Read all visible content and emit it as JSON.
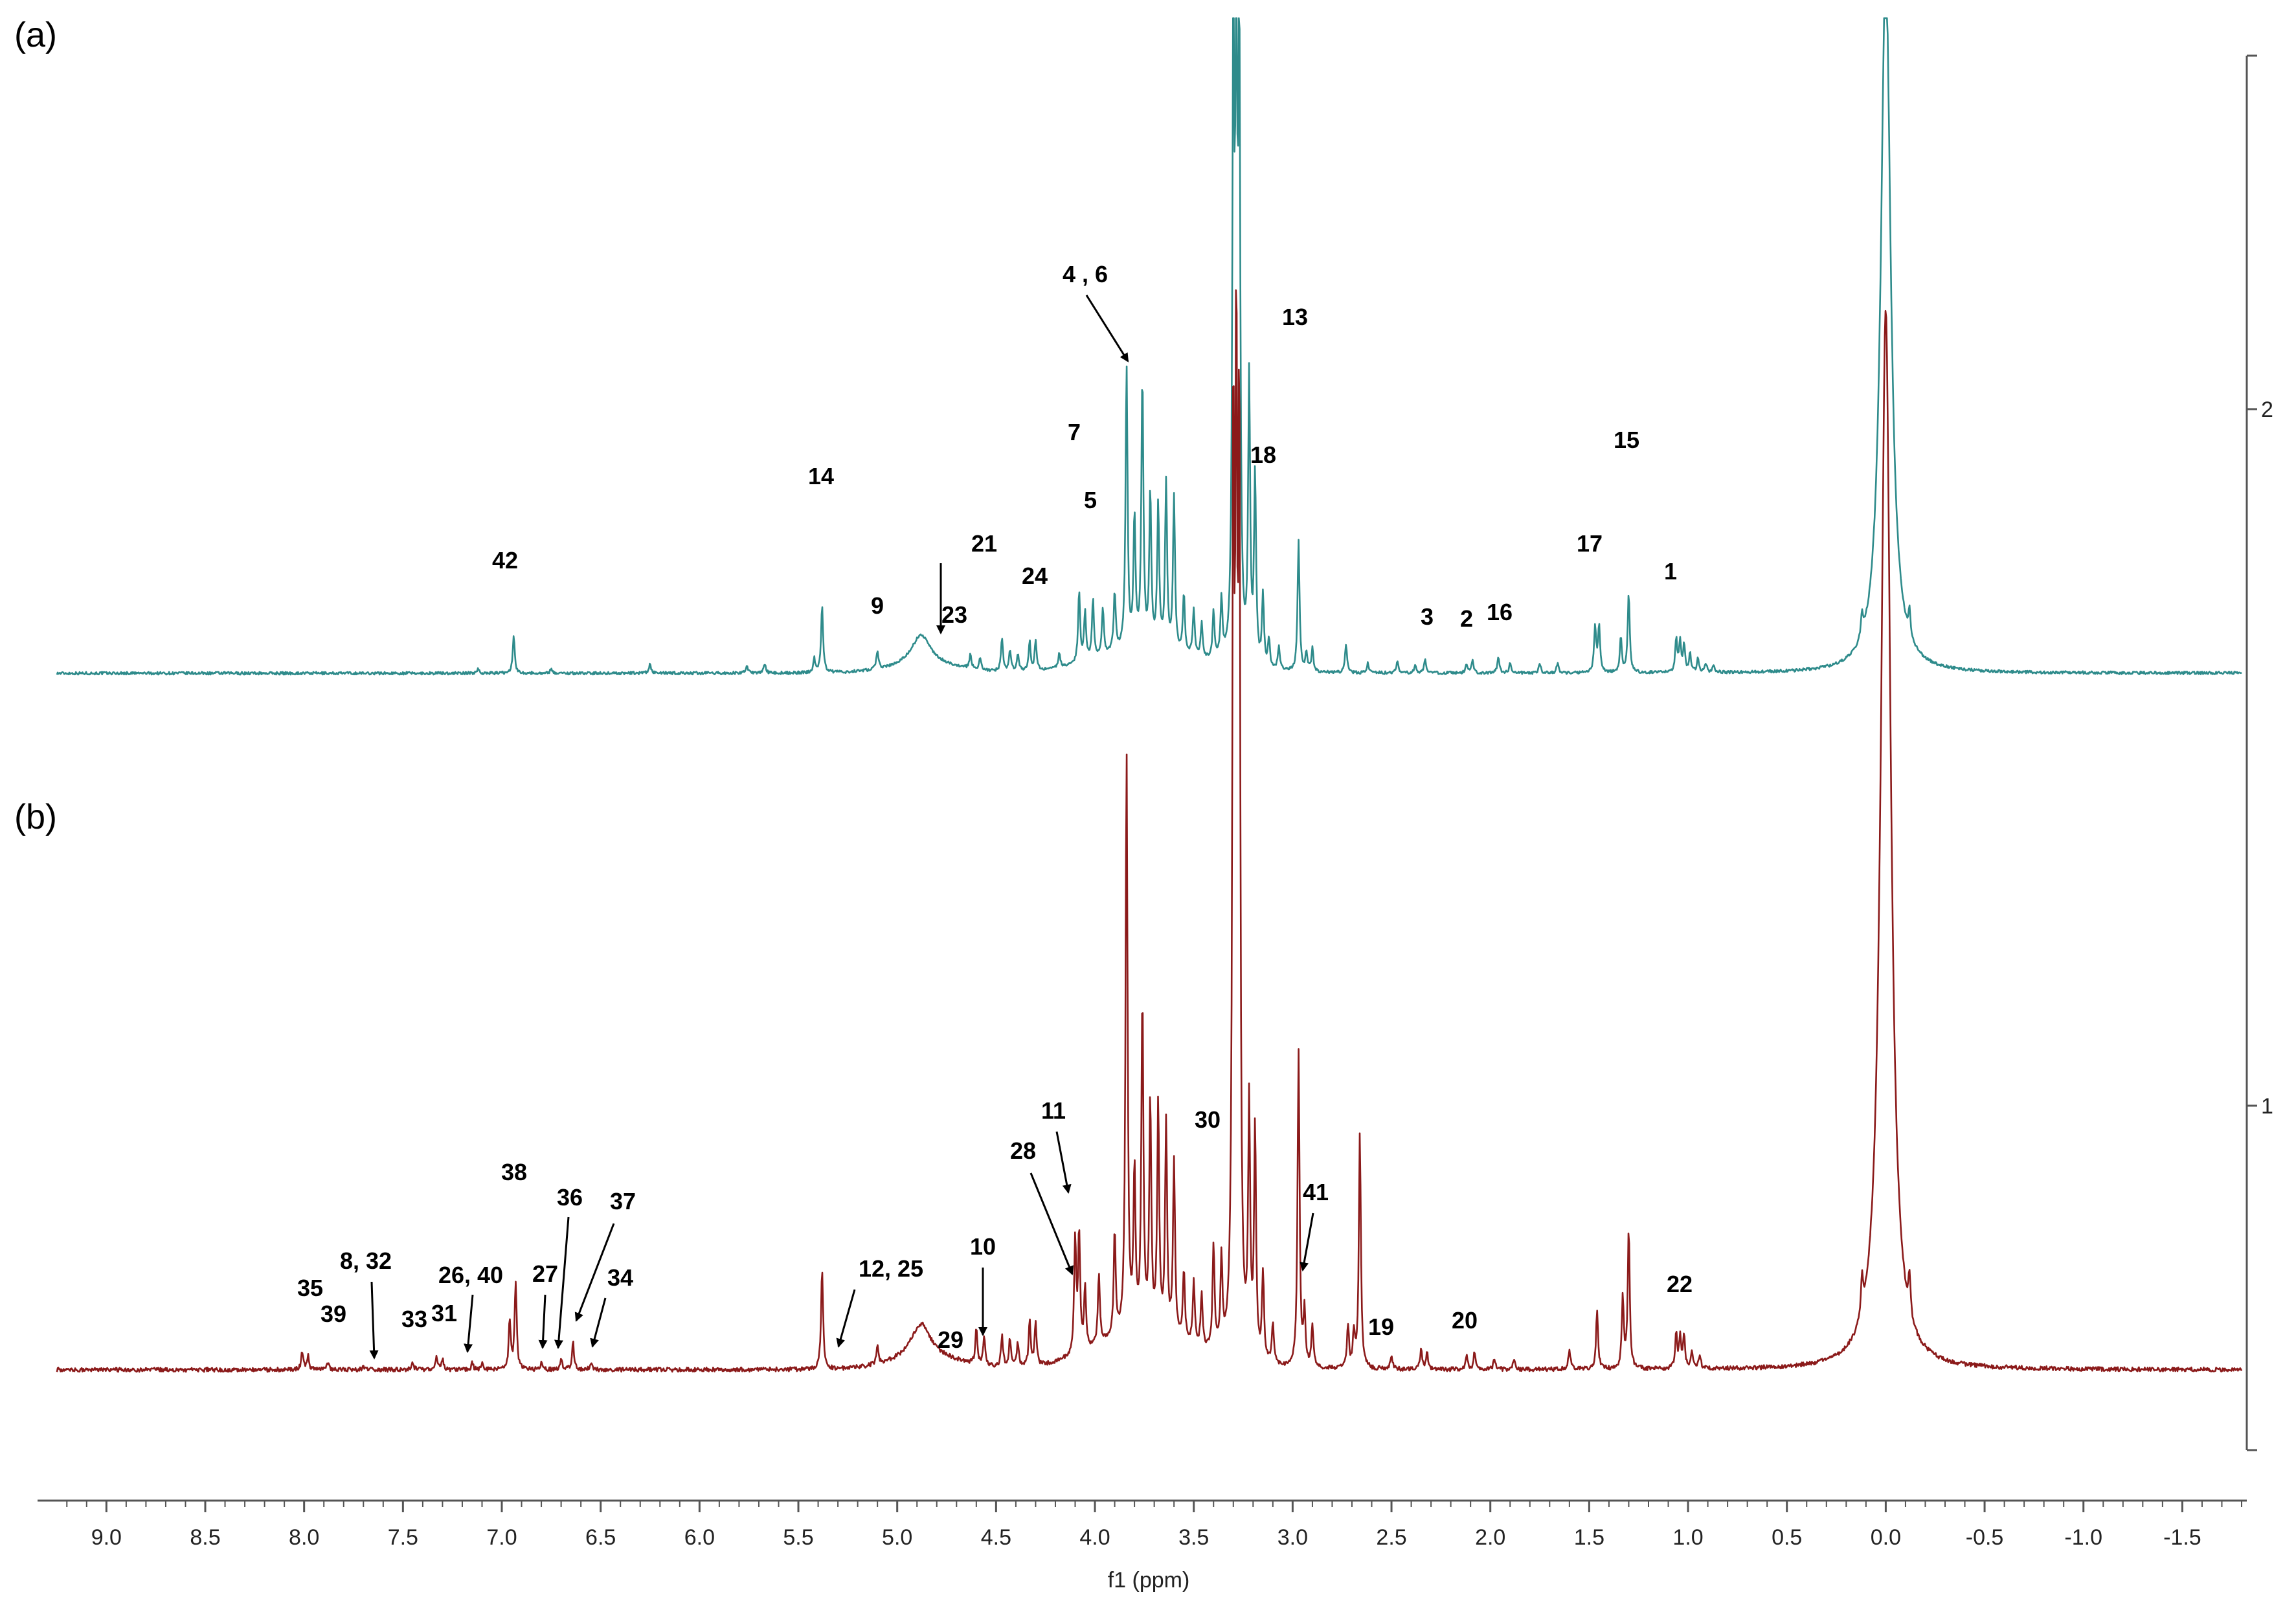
{
  "chart_data": {
    "type": "line",
    "title": "",
    "xlabel": "f1 (ppm)",
    "ylabel": "",
    "xlim": [
      9.25,
      -1.8
    ],
    "x_ticks": [
      "9.0",
      "8.5",
      "8.0",
      "7.5",
      "7.0",
      "6.5",
      "6.0",
      "5.5",
      "5.0",
      "4.5",
      "4.0",
      "3.5",
      "3.0",
      "2.5",
      "2.0",
      "1.5",
      "1.0",
      "0.5",
      "0.0",
      "-0.5",
      "-1.0",
      "-1.5"
    ],
    "right_axis_ticks": [
      "2",
      "1"
    ],
    "grid": false,
    "series": [
      {
        "name": "(a)",
        "color": "#2e8b8b",
        "peaks": [
          {
            "ppm": 6.94,
            "h": 0.16
          },
          {
            "ppm": 6.75,
            "h": 0.02
          },
          {
            "ppm": 7.12,
            "h": 0.02
          },
          {
            "ppm": 6.25,
            "h": 0.04
          },
          {
            "ppm": 5.67,
            "h": 0.04
          },
          {
            "ppm": 5.76,
            "h": 0.03
          },
          {
            "ppm": 5.42,
            "h": 0.06
          },
          {
            "ppm": 5.38,
            "h": 0.29
          },
          {
            "ppm": 5.1,
            "h": 0.08
          },
          {
            "ppm": 4.88,
            "h": 0.13,
            "w": 0.06
          },
          {
            "ppm": 4.63,
            "h": 0.06
          },
          {
            "ppm": 4.58,
            "h": 0.05
          },
          {
            "ppm": 4.47,
            "h": 0.14
          },
          {
            "ppm": 4.43,
            "h": 0.09
          },
          {
            "ppm": 4.39,
            "h": 0.07
          },
          {
            "ppm": 4.33,
            "h": 0.12
          },
          {
            "ppm": 4.3,
            "h": 0.12
          },
          {
            "ppm": 4.18,
            "h": 0.06
          },
          {
            "ppm": 4.08,
            "h": 0.3
          },
          {
            "ppm": 4.05,
            "h": 0.2
          },
          {
            "ppm": 4.01,
            "h": 0.25
          },
          {
            "ppm": 3.96,
            "h": 0.2
          },
          {
            "ppm": 3.9,
            "h": 0.25
          },
          {
            "ppm": 3.84,
            "h": 1.2
          },
          {
            "ppm": 3.8,
            "h": 0.55
          },
          {
            "ppm": 3.76,
            "h": 1.15
          },
          {
            "ppm": 3.72,
            "h": 0.65
          },
          {
            "ppm": 3.68,
            "h": 0.6
          },
          {
            "ppm": 3.64,
            "h": 0.7
          },
          {
            "ppm": 3.6,
            "h": 0.65
          },
          {
            "ppm": 3.55,
            "h": 0.25
          },
          {
            "ppm": 3.5,
            "h": 0.2
          },
          {
            "ppm": 3.46,
            "h": 0.15
          },
          {
            "ppm": 3.4,
            "h": 0.2
          },
          {
            "ppm": 3.36,
            "h": 0.25
          },
          {
            "ppm": 3.3,
            "h": 2.5
          },
          {
            "ppm": 3.285,
            "h": 2.5
          },
          {
            "ppm": 3.27,
            "h": 2.5
          },
          {
            "ppm": 3.22,
            "h": 1.2
          },
          {
            "ppm": 3.19,
            "h": 0.8
          },
          {
            "ppm": 3.15,
            "h": 0.3
          },
          {
            "ppm": 3.12,
            "h": 0.12
          },
          {
            "ppm": 3.07,
            "h": 0.1
          },
          {
            "ppm": 2.97,
            "h": 0.55
          },
          {
            "ppm": 2.93,
            "h": 0.08
          },
          {
            "ppm": 2.9,
            "h": 0.1
          },
          {
            "ppm": 2.73,
            "h": 0.12
          },
          {
            "ppm": 2.62,
            "h": 0.04
          },
          {
            "ppm": 2.47,
            "h": 0.05
          },
          {
            "ppm": 2.38,
            "h": 0.03
          },
          {
            "ppm": 2.33,
            "h": 0.06
          },
          {
            "ppm": 2.12,
            "h": 0.04
          },
          {
            "ppm": 2.09,
            "h": 0.05
          },
          {
            "ppm": 1.96,
            "h": 0.07
          },
          {
            "ppm": 1.9,
            "h": 0.04
          },
          {
            "ppm": 1.75,
            "h": 0.04
          },
          {
            "ppm": 1.66,
            "h": 0.04
          },
          {
            "ppm": 1.47,
            "h": 0.2
          },
          {
            "ppm": 1.45,
            "h": 0.2
          },
          {
            "ppm": 1.34,
            "h": 0.15
          },
          {
            "ppm": 1.3,
            "h": 0.34
          },
          {
            "ppm": 1.06,
            "h": 0.14
          },
          {
            "ppm": 1.04,
            "h": 0.13
          },
          {
            "ppm": 1.02,
            "h": 0.12
          },
          {
            "ppm": 0.99,
            "h": 0.08
          },
          {
            "ppm": 0.95,
            "h": 0.06
          },
          {
            "ppm": 0.91,
            "h": 0.04
          },
          {
            "ppm": 0.87,
            "h": 0.03
          },
          {
            "ppm": 0.12,
            "h": 0.1
          },
          {
            "ppm": 0.0,
            "h": 3.0,
            "w": 0.03
          },
          {
            "ppm": -0.12,
            "h": 0.11
          }
        ]
      },
      {
        "name": "(b)",
        "color": "#8b1a1a",
        "peaks": [
          {
            "ppm": 8.01,
            "h": 0.05
          },
          {
            "ppm": 7.98,
            "h": 0.04
          },
          {
            "ppm": 7.88,
            "h": 0.02
          },
          {
            "ppm": 7.7,
            "h": 0.01
          },
          {
            "ppm": 7.45,
            "h": 0.02
          },
          {
            "ppm": 7.33,
            "h": 0.04
          },
          {
            "ppm": 7.3,
            "h": 0.03
          },
          {
            "ppm": 7.15,
            "h": 0.02
          },
          {
            "ppm": 7.1,
            "h": 0.02
          },
          {
            "ppm": 6.96,
            "h": 0.14
          },
          {
            "ppm": 6.93,
            "h": 0.25
          },
          {
            "ppm": 6.8,
            "h": 0.02
          },
          {
            "ppm": 6.7,
            "h": 0.03
          },
          {
            "ppm": 6.64,
            "h": 0.08
          },
          {
            "ppm": 6.55,
            "h": 0.02
          },
          {
            "ppm": 5.38,
            "h": 0.29
          },
          {
            "ppm": 5.1,
            "h": 0.05
          },
          {
            "ppm": 4.88,
            "h": 0.1,
            "w": 0.06
          },
          {
            "ppm": 4.6,
            "h": 0.1
          },
          {
            "ppm": 4.56,
            "h": 0.08
          },
          {
            "ppm": 4.47,
            "h": 0.09
          },
          {
            "ppm": 4.43,
            "h": 0.08
          },
          {
            "ppm": 4.39,
            "h": 0.07
          },
          {
            "ppm": 4.33,
            "h": 0.13
          },
          {
            "ppm": 4.3,
            "h": 0.12
          },
          {
            "ppm": 4.1,
            "h": 0.33
          },
          {
            "ppm": 4.08,
            "h": 0.34
          },
          {
            "ppm": 4.05,
            "h": 0.18
          },
          {
            "ppm": 3.98,
            "h": 0.2
          },
          {
            "ppm": 3.9,
            "h": 0.3
          },
          {
            "ppm": 3.84,
            "h": 1.65
          },
          {
            "ppm": 3.8,
            "h": 0.45
          },
          {
            "ppm": 3.76,
            "h": 0.95
          },
          {
            "ppm": 3.72,
            "h": 0.65
          },
          {
            "ppm": 3.68,
            "h": 0.65
          },
          {
            "ppm": 3.64,
            "h": 0.6
          },
          {
            "ppm": 3.6,
            "h": 0.5
          },
          {
            "ppm": 3.55,
            "h": 0.2
          },
          {
            "ppm": 3.5,
            "h": 0.18
          },
          {
            "ppm": 3.46,
            "h": 0.15
          },
          {
            "ppm": 3.4,
            "h": 0.3
          },
          {
            "ppm": 3.36,
            "h": 0.25
          },
          {
            "ppm": 3.3,
            "h": 2.5
          },
          {
            "ppm": 3.285,
            "h": 2.5
          },
          {
            "ppm": 3.27,
            "h": 2.5
          },
          {
            "ppm": 3.22,
            "h": 0.7
          },
          {
            "ppm": 3.19,
            "h": 0.65
          },
          {
            "ppm": 3.15,
            "h": 0.25
          },
          {
            "ppm": 3.1,
            "h": 0.12
          },
          {
            "ppm": 2.97,
            "h": 0.9
          },
          {
            "ppm": 2.94,
            "h": 0.15
          },
          {
            "ppm": 2.9,
            "h": 0.12
          },
          {
            "ppm": 2.72,
            "h": 0.12
          },
          {
            "ppm": 2.69,
            "h": 0.1
          },
          {
            "ppm": 2.66,
            "h": 0.67
          },
          {
            "ppm": 2.5,
            "h": 0.04
          },
          {
            "ppm": 2.35,
            "h": 0.06
          },
          {
            "ppm": 2.32,
            "h": 0.05
          },
          {
            "ppm": 2.12,
            "h": 0.04
          },
          {
            "ppm": 2.08,
            "h": 0.05
          },
          {
            "ppm": 1.98,
            "h": 0.03
          },
          {
            "ppm": 1.88,
            "h": 0.03
          },
          {
            "ppm": 1.6,
            "h": 0.06
          },
          {
            "ppm": 1.46,
            "h": 0.17
          },
          {
            "ppm": 1.33,
            "h": 0.2
          },
          {
            "ppm": 1.3,
            "h": 0.4
          },
          {
            "ppm": 1.06,
            "h": 0.1
          },
          {
            "ppm": 1.04,
            "h": 0.09
          },
          {
            "ppm": 1.02,
            "h": 0.09
          },
          {
            "ppm": 0.98,
            "h": 0.05
          },
          {
            "ppm": 0.94,
            "h": 0.04
          },
          {
            "ppm": 0.12,
            "h": 0.1
          },
          {
            "ppm": 0.0,
            "h": 3.0,
            "w": 0.03
          },
          {
            "ppm": -0.12,
            "h": 0.11
          }
        ]
      }
    ],
    "panel_labels": [
      "(a)",
      "(b)"
    ],
    "annotations_a": [
      {
        "text": "42",
        "ppm": 6.94
      },
      {
        "text": "14",
        "ppm": 5.38
      },
      {
        "text": "9",
        "ppm": 5.08
      },
      {
        "text": "23",
        "ppm": 4.62
      },
      {
        "text": "21",
        "ppm": 4.52
      },
      {
        "text": "24",
        "ppm": 4.33
      },
      {
        "text": "7",
        "ppm": 4.08
      },
      {
        "text": "5",
        "ppm": 4.01
      },
      {
        "text": "4 , 6",
        "ppm": 3.84
      },
      {
        "text": "18",
        "ppm": 3.16
      },
      {
        "text": "13",
        "ppm": 2.97
      },
      {
        "text": "3",
        "ppm": 2.32
      },
      {
        "text": "2",
        "ppm": 2.1
      },
      {
        "text": "16",
        "ppm": 1.94
      },
      {
        "text": "17",
        "ppm": 1.47
      },
      {
        "text": "15",
        "ppm": 1.3
      },
      {
        "text": "1",
        "ppm": 1.04
      }
    ],
    "annotations_b": [
      {
        "text": "35",
        "ppm": 8.01
      },
      {
        "text": "39",
        "ppm": 7.88
      },
      {
        "text": "8, 32",
        "ppm": 7.72
      },
      {
        "text": "33",
        "ppm": 7.45
      },
      {
        "text": "31",
        "ppm": 7.33
      },
      {
        "text": "26, 40",
        "ppm": 7.15
      },
      {
        "text": "38",
        "ppm": 6.94
      },
      {
        "text": "27",
        "ppm": 6.78
      },
      {
        "text": "36",
        "ppm": 6.68
      },
      {
        "text": "37",
        "ppm": 6.55
      },
      {
        "text": "34",
        "ppm": 6.52
      },
      {
        "text": "12, 25",
        "ppm": 5.3
      },
      {
        "text": "29",
        "ppm": 4.68
      },
      {
        "text": "10",
        "ppm": 4.56
      },
      {
        "text": "11",
        "ppm": 4.12
      },
      {
        "text": "28",
        "ppm": 4.1
      },
      {
        "text": "30",
        "ppm": 3.4
      },
      {
        "text": "41",
        "ppm": 2.92
      },
      {
        "text": "19",
        "ppm": 2.5
      },
      {
        "text": "20",
        "ppm": 2.1
      },
      {
        "text": "22",
        "ppm": 1.04
      }
    ]
  }
}
